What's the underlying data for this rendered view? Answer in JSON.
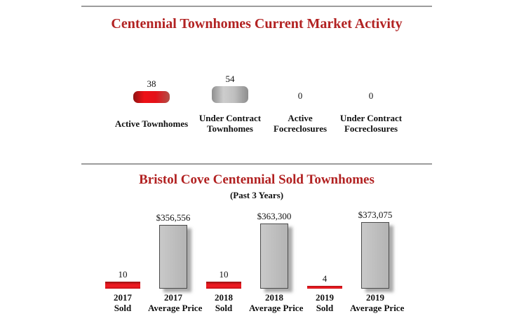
{
  "colors": {
    "title_red": "#b22222",
    "divider_gray": "#9c9c9c",
    "text": "#111111",
    "red_bar": "#e8161d",
    "gray_bar": "#bcbcbc"
  },
  "chart_data": [
    {
      "type": "bar",
      "title": "Centennial Townhomes Current Market Activity",
      "categories": [
        "Active Townhomes",
        "Under Contract Townhomes",
        "Active Focreclosures",
        "Under Contract Focreclosures"
      ],
      "category_lines": [
        [
          "Active Townhomes"
        ],
        [
          "Under Contract",
          "Townhomes"
        ],
        [
          "Active",
          "Focreclosures"
        ],
        [
          "Under Contract",
          "Focreclosures"
        ]
      ],
      "values": [
        38,
        54,
        0,
        0
      ],
      "value_labels": [
        "38",
        "54",
        "0",
        "0"
      ],
      "bar_styles": [
        "red3d",
        "gray3d",
        "red3d",
        "gray3d"
      ],
      "bar_colors": [
        "#e8161d",
        "#bcbcbc",
        "#e8161d",
        "#bcbcbc"
      ],
      "xlabel": "",
      "ylabel": "",
      "ylim": [
        0,
        54
      ],
      "grid": false,
      "legend": false
    },
    {
      "type": "bar",
      "title": "Bristol Cove Centennial Sold Townhomes",
      "subtitle": "(Past 3 Years)",
      "categories": [
        "2017 Sold",
        "2017 Average Price",
        "2018 Sold",
        "2018 Average Price",
        "2019 Sold",
        "2019 Average Price"
      ],
      "category_lines": [
        [
          "2017",
          "Sold"
        ],
        [
          "2017",
          "Average Price"
        ],
        [
          "2018",
          "Sold"
        ],
        [
          "2018",
          "Average Price"
        ],
        [
          "2019",
          "Sold"
        ],
        [
          "2019",
          "Average Price"
        ]
      ],
      "values": [
        10,
        356556,
        10,
        363300,
        4,
        373075
      ],
      "value_labels": [
        "10",
        "$356,556",
        "10",
        "$363,300",
        "4",
        "$373,075"
      ],
      "bar_styles": [
        "redflat",
        "grayflat",
        "redflat",
        "grayflat",
        "redflat",
        "grayflat"
      ],
      "series": [
        {
          "name": "Sold",
          "values": [
            10,
            10,
            4
          ],
          "color": "#e8161d"
        },
        {
          "name": "Average Price",
          "values": [
            356556,
            363300,
            373075
          ],
          "color": "#bcbcbc"
        }
      ],
      "xlabel": "",
      "ylabel": "",
      "grid": false,
      "legend": false
    }
  ]
}
